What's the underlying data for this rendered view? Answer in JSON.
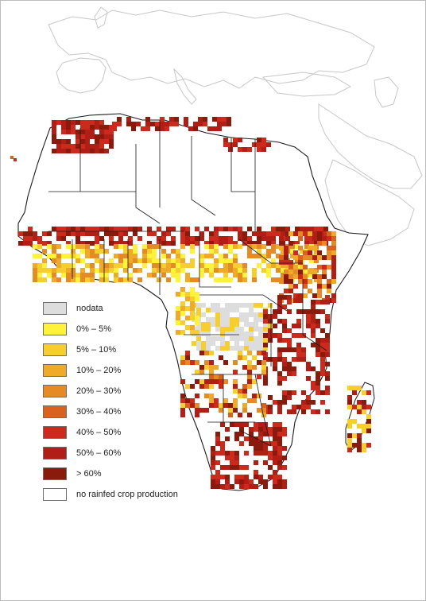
{
  "legend": {
    "items": [
      {
        "label": "nodata",
        "color": "#dddddd"
      },
      {
        "label": "0% – 5%",
        "color": "#fff23a"
      },
      {
        "label": "5% – 10%",
        "color": "#f6cf2e"
      },
      {
        "label": "10% – 20%",
        "color": "#eeaa28"
      },
      {
        "label": "20% – 30%",
        "color": "#e68a26"
      },
      {
        "label": "30% – 40%",
        "color": "#d9621f"
      },
      {
        "label": "40% – 50%",
        "color": "#cc2a1c"
      },
      {
        "label": "50% – 60%",
        "color": "#b01e16"
      },
      {
        "label": "> 60%",
        "color": "#8a1a0c"
      },
      {
        "label": "no rainfed crop production",
        "color": "#ffffff"
      }
    ]
  },
  "map": {
    "basemap_color": "#c7c7c7",
    "country_border_color": "#1a1a1a",
    "background_color": "#ffffff"
  }
}
